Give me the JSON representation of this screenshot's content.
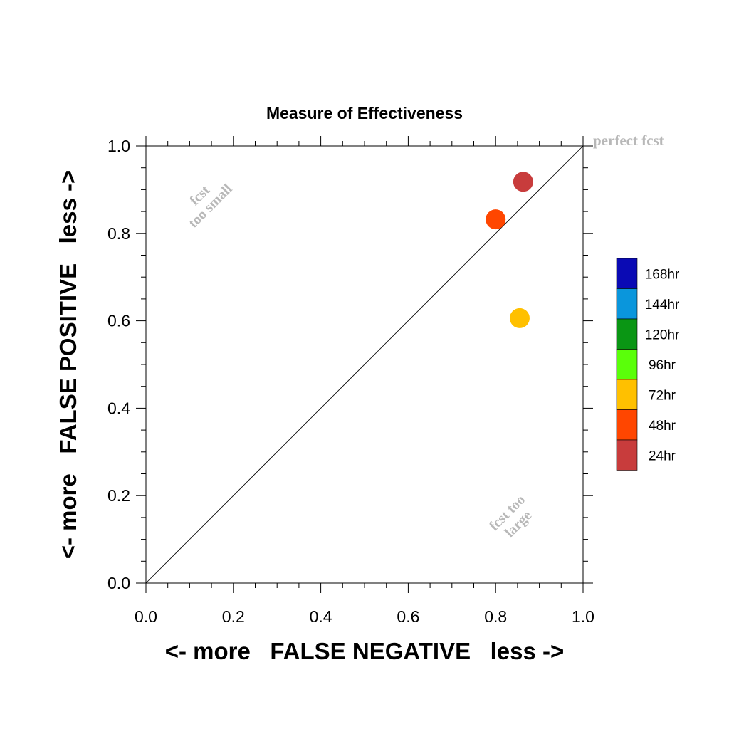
{
  "chart_data": {
    "type": "scatter",
    "title": "Measure of Effectiveness",
    "xlabel": "<- more   FALSE NEGATIVE   less ->",
    "ylabel": "<- more   FALSE POSITIVE   less ->",
    "xlim": [
      0,
      1
    ],
    "ylim": [
      0,
      1
    ],
    "x_ticks": [
      "0.0",
      "0.2",
      "0.4",
      "0.6",
      "0.8",
      "1.0"
    ],
    "y_ticks": [
      "0.0",
      "0.2",
      "0.4",
      "0.6",
      "0.8",
      "1.0"
    ],
    "grid": false,
    "reference_line": {
      "from": [
        0,
        0
      ],
      "to": [
        1,
        1
      ]
    },
    "annotations": {
      "perfect": "perfect fcst",
      "too_small": [
        "fcst",
        "too small"
      ],
      "too_large": [
        "fcst too",
        "large"
      ]
    },
    "legend": {
      "placement": "right",
      "entries": [
        {
          "label": "168hr",
          "color": "#0a0ab4"
        },
        {
          "label": "144hr",
          "color": "#0a96dc"
        },
        {
          "label": "120hr",
          "color": "#0a9614"
        },
        {
          "label": "96hr",
          "color": "#5aff0a"
        },
        {
          "label": "72hr",
          "color": "#ffc000"
        },
        {
          "label": "48hr",
          "color": "#ff4600"
        },
        {
          "label": "24hr",
          "color": "#c83c3c"
        }
      ]
    },
    "points": [
      {
        "label": "24hr",
        "x": 0.863,
        "y": 0.918,
        "color": "#c83c3c"
      },
      {
        "label": "48hr",
        "x": 0.8,
        "y": 0.832,
        "color": "#ff4600"
      },
      {
        "label": "72hr",
        "x": 0.855,
        "y": 0.606,
        "color": "#ffc000"
      }
    ]
  }
}
